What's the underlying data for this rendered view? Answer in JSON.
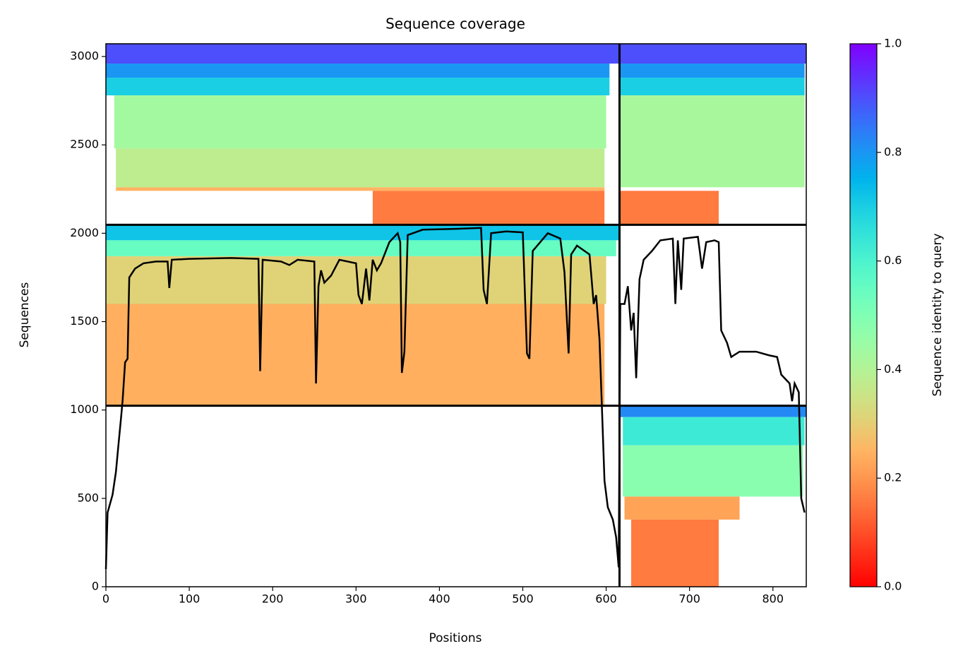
{
  "chart_data": {
    "type": "coverage",
    "title": "Sequence coverage",
    "xlabel": "Positions",
    "ylabel": "Sequences",
    "colorbar_label": "Sequence identity to query",
    "colormap": "rainbow_r",
    "xlim": [
      0,
      840
    ],
    "ylim": [
      0,
      3072
    ],
    "xticks": [
      0,
      100,
      200,
      300,
      400,
      500,
      600,
      700,
      800
    ],
    "yticks": [
      0,
      500,
      1000,
      1500,
      2000,
      2500,
      3000
    ],
    "clim": [
      0,
      1
    ],
    "cticks": [
      {
        "value": 0,
        "label": "0.0"
      },
      {
        "value": 0.2,
        "label": "0.2"
      },
      {
        "value": 0.4,
        "label": "0.4"
      },
      {
        "value": 0.6,
        "label": "0.6"
      },
      {
        "value": 0.8,
        "label": "0.8"
      },
      {
        "value": 1,
        "label": "1.0"
      }
    ],
    "chain_breaks": {
      "x": [
        616
      ],
      "y": [
        1024,
        2048
      ]
    },
    "blocks": [
      {
        "x0": 0,
        "x1": 616,
        "y0": 2960,
        "y1": 3072,
        "identity": 0.9
      },
      {
        "x0": 0,
        "x1": 604,
        "y0": 2880,
        "y1": 2960,
        "identity": 0.8
      },
      {
        "x0": 0,
        "x1": 604,
        "y0": 2780,
        "y1": 2880,
        "identity": 0.7
      },
      {
        "x0": 10,
        "x1": 600,
        "y0": 2480,
        "y1": 2780,
        "identity": 0.43
      },
      {
        "x0": 12,
        "x1": 598,
        "y0": 2260,
        "y1": 2480,
        "identity": 0.38
      },
      {
        "x0": 12,
        "x1": 598,
        "y0": 2240,
        "y1": 2260,
        "identity": 0.25
      },
      {
        "x0": 320,
        "x1": 598,
        "y0": 2048,
        "y1": 2240,
        "identity": 0.16
      },
      {
        "x0": 0,
        "x1": 616,
        "y0": 1960,
        "y1": 2048,
        "identity": 0.72
      },
      {
        "x0": 0,
        "x1": 612,
        "y0": 1870,
        "y1": 1960,
        "identity": 0.55
      },
      {
        "x0": 0,
        "x1": 600,
        "y0": 1600,
        "y1": 1870,
        "identity": 0.31
      },
      {
        "x0": 0,
        "x1": 598,
        "y0": 1024,
        "y1": 1600,
        "identity": 0.24
      },
      {
        "x0": 616,
        "x1": 840,
        "y0": 2960,
        "y1": 3072,
        "identity": 0.9
      },
      {
        "x0": 616,
        "x1": 838,
        "y0": 2880,
        "y1": 2960,
        "identity": 0.8
      },
      {
        "x0": 616,
        "x1": 838,
        "y0": 2780,
        "y1": 2880,
        "identity": 0.7
      },
      {
        "x0": 616,
        "x1": 838,
        "y0": 2260,
        "y1": 2780,
        "identity": 0.42
      },
      {
        "x0": 616,
        "x1": 735,
        "y0": 2048,
        "y1": 2240,
        "identity": 0.16
      },
      {
        "x0": 616,
        "x1": 840,
        "y0": 960,
        "y1": 1024,
        "identity": 0.82
      },
      {
        "x0": 620,
        "x1": 838,
        "y0": 800,
        "y1": 960,
        "identity": 0.63
      },
      {
        "x0": 620,
        "x1": 836,
        "y0": 510,
        "y1": 800,
        "identity": 0.48
      },
      {
        "x0": 622,
        "x1": 760,
        "y0": 380,
        "y1": 510,
        "identity": 0.22
      },
      {
        "x0": 630,
        "x1": 735,
        "y0": 0,
        "y1": 380,
        "identity": 0.16
      }
    ],
    "coverage": {
      "x": [
        0,
        2,
        8,
        12,
        15,
        18,
        20,
        23,
        26,
        28,
        35,
        45,
        60,
        74,
        76,
        79,
        100,
        150,
        183,
        185,
        188,
        210,
        220,
        230,
        250,
        252,
        255,
        258,
        262,
        270,
        280,
        300,
        303,
        307,
        312,
        316,
        320,
        325,
        330,
        340,
        350,
        353,
        355,
        358,
        362,
        380,
        420,
        450,
        453,
        457,
        462,
        480,
        500,
        505,
        508,
        512,
        530,
        545,
        550,
        555,
        558,
        565,
        580,
        585,
        588,
        592,
        595,
        598,
        602,
        608,
        612,
        615,
        617,
        622,
        626,
        630,
        633,
        636,
        640,
        645,
        655,
        665,
        680,
        683,
        686,
        690,
        693,
        710,
        715,
        720,
        730,
        735,
        738,
        745,
        750,
        760,
        780,
        795,
        805,
        810,
        820,
        823,
        826,
        831,
        834,
        838
      ],
      "y": [
        100,
        420,
        520,
        650,
        800,
        950,
        1050,
        1270,
        1290,
        1750,
        1800,
        1830,
        1840,
        1840,
        1690,
        1850,
        1855,
        1860,
        1855,
        1220,
        1850,
        1840,
        1820,
        1850,
        1840,
        1150,
        1700,
        1790,
        1720,
        1760,
        1850,
        1830,
        1650,
        1600,
        1800,
        1620,
        1850,
        1790,
        1830,
        1950,
        2000,
        1950,
        1210,
        1330,
        1990,
        2020,
        2025,
        2030,
        1680,
        1600,
        2000,
        2010,
        2005,
        1320,
        1290,
        1900,
        2000,
        1970,
        1780,
        1320,
        1880,
        1930,
        1880,
        1600,
        1650,
        1400,
        1000,
        600,
        450,
        380,
        280,
        110,
        1600,
        1600,
        1700,
        1450,
        1550,
        1180,
        1740,
        1850,
        1900,
        1960,
        1970,
        1600,
        1960,
        1680,
        1970,
        1980,
        1800,
        1950,
        1960,
        1950,
        1450,
        1380,
        1300,
        1330,
        1330,
        1310,
        1300,
        1200,
        1150,
        1050,
        1150,
        1100,
        500,
        420
      ]
    }
  }
}
